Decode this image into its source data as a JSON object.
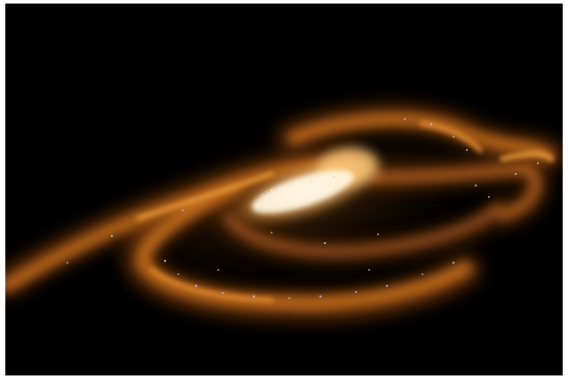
{
  "image": {
    "subject_icon": "spiral-galaxy-icon",
    "background_color": "#000000",
    "frame_color": "#ffffff",
    "colors": {
      "core_white": "#fff7e6",
      "core_yellow": "#ffd58a",
      "arm_orange": "#e0852a",
      "arm_dark_orange": "#9a4b12",
      "star_blue": "#b9d6ff"
    }
  }
}
